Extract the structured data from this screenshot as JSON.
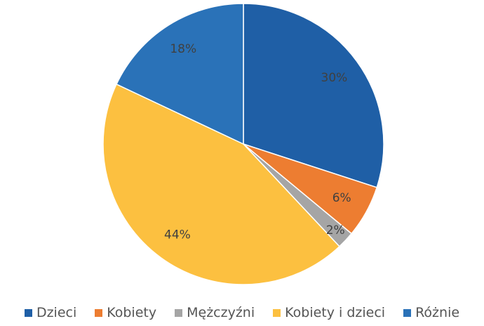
{
  "chart_data": {
    "type": "pie",
    "categories": [
      "Dzieci",
      "Kobiety",
      "Mężczyźni",
      "Kobiety i dzieci",
      "Różnie"
    ],
    "values": [
      30,
      6,
      2,
      44,
      18
    ],
    "value_labels": [
      "30%",
      "6%",
      "2%",
      "44%",
      "18%"
    ],
    "colors": [
      "#1f5fa6",
      "#ed7d31",
      "#a5a5a5",
      "#fcc040",
      "#2a72b8"
    ],
    "legend": "bottom"
  }
}
